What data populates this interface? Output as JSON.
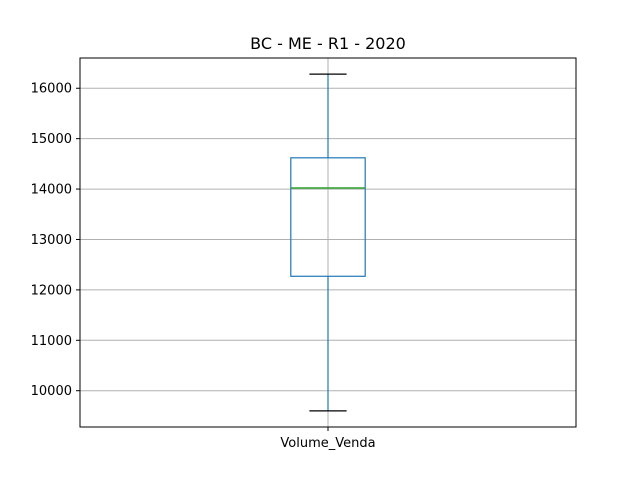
{
  "chart_data": {
    "type": "box",
    "title": "BC - ME - R1 - 2020",
    "categories": [
      "Volume_Venda"
    ],
    "boxes": [
      {
        "name": "Volume_Venda",
        "whisker_low": 9600,
        "q1": 12270,
        "median": 14020,
        "q3": 14620,
        "whisker_high": 16280
      }
    ],
    "ylim": [
      9280,
      16600
    ],
    "yticks": [
      10000,
      11000,
      12000,
      13000,
      14000,
      15000,
      16000
    ],
    "ytick_labels": [
      "10000",
      "11000",
      "12000",
      "13000",
      "14000",
      "15000",
      "16000"
    ],
    "xlabel": "",
    "ylabel": "",
    "grid": true,
    "colors": {
      "box": "#1f77b4",
      "median": "#2ca02c",
      "whisker_cap": "#000000",
      "grid": "#b0b0b0"
    }
  }
}
